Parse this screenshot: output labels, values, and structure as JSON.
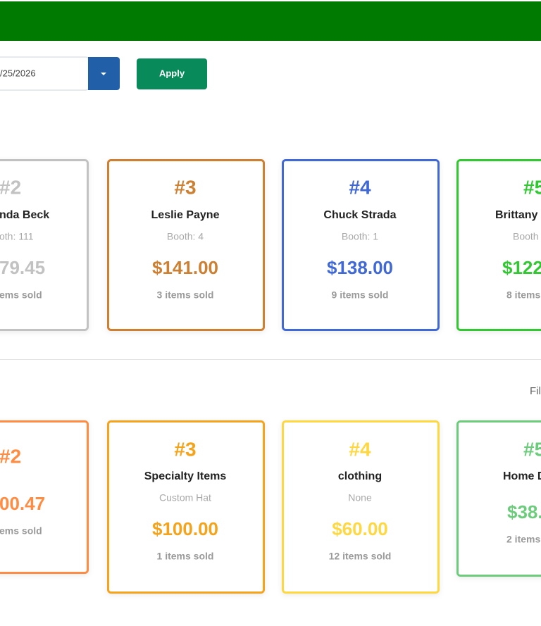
{
  "filter": {
    "date": "/25/2026",
    "apply": "Apply",
    "label": "Fil"
  },
  "vendors": [
    {
      "rank": "#2",
      "name": "nda Beck",
      "booth": "oth: 111",
      "amount": "79.45",
      "items": "ems sold",
      "color": "#c2c2c2"
    },
    {
      "rank": "#3",
      "name": "Leslie Payne",
      "booth": "Booth: 4",
      "amount": "$141.00",
      "items": "3 items sold",
      "color": "#cd7f32"
    },
    {
      "rank": "#4",
      "name": "Chuck Strada",
      "booth": "Booth: 1",
      "amount": "$138.00",
      "items": "9 items sold",
      "color": "#4169d6"
    },
    {
      "rank": "#5",
      "name": "Brittany I",
      "booth": "Booth",
      "amount": "$122",
      "items": "8 items",
      "color": "#32c832"
    }
  ],
  "categories": [
    {
      "rank": "#2",
      "amount": "00.47",
      "items": "ems sold",
      "color": "#ff8c42"
    },
    {
      "rank": "#3",
      "name": "Specialty Items",
      "subtitle": "Custom Hat",
      "amount": "$100.00",
      "items": "1 items sold",
      "color": "#f5a31a"
    },
    {
      "rank": "#4",
      "name": "clothing",
      "subtitle": "None",
      "amount": "$60.00",
      "items": "12 items sold",
      "color": "#ffd740"
    },
    {
      "rank": "#5",
      "name": "Home D",
      "amount": "$38.",
      "items": "2 items",
      "color": "#6ccc7c"
    }
  ]
}
